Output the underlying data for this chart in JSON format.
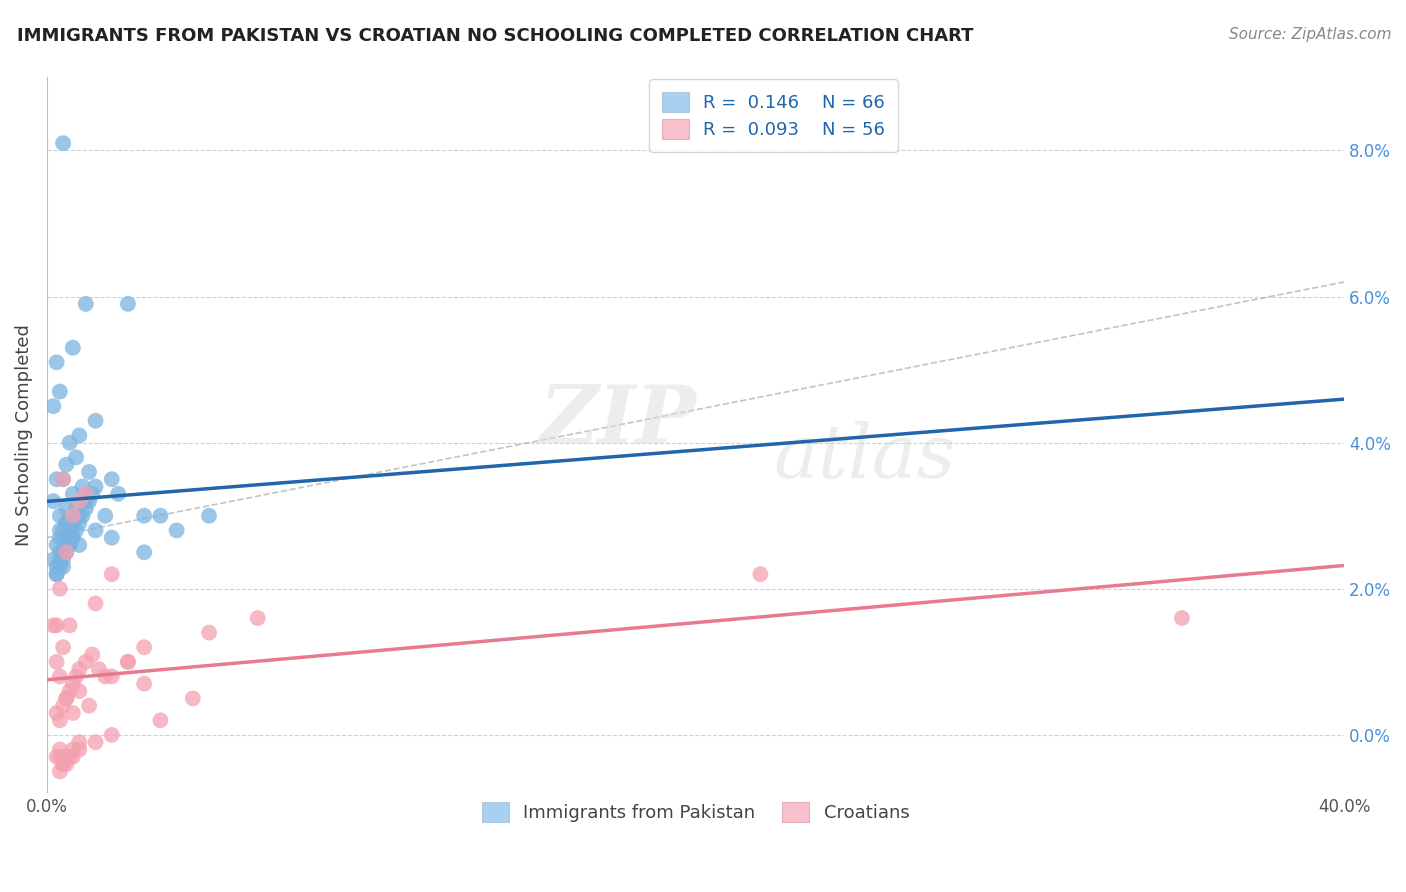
{
  "title": "IMMIGRANTS FROM PAKISTAN VS CROATIAN NO SCHOOLING COMPLETED CORRELATION CHART",
  "source": "Source: ZipAtlas.com",
  "ylabel": "No Schooling Completed",
  "yticks": [
    "0.0%",
    "2.0%",
    "4.0%",
    "6.0%",
    "8.0%"
  ],
  "ytick_vals": [
    0.0,
    2.0,
    4.0,
    6.0,
    8.0
  ],
  "xlim": [
    0.0,
    40.0
  ],
  "ylim": [
    -0.8,
    9.0
  ],
  "legend1_label": "Immigrants from Pakistan",
  "legend2_label": "Croatians",
  "R1": 0.146,
  "N1": 66,
  "R2": 0.093,
  "N2": 56,
  "color_blue": "#7ab3e0",
  "color_pink": "#f4a0b0",
  "color_blue_line": "#2166ac",
  "color_pink_line": "#e87a90",
  "color_legend_blue": "#a8d0f0",
  "color_legend_pink": "#f8c0cc",
  "blue_points_x": [
    0.5,
    1.2,
    0.3,
    0.8,
    2.5,
    0.2,
    0.4,
    0.6,
    1.0,
    1.5,
    0.7,
    0.3,
    0.5,
    0.2,
    0.4,
    0.6,
    0.8,
    1.1,
    1.3,
    0.9,
    2.0,
    3.0,
    0.4,
    0.3,
    0.6,
    0.8,
    1.0,
    0.5,
    0.7,
    0.2,
    0.3,
    0.5,
    0.4,
    0.6,
    0.9,
    1.2,
    1.8,
    2.2,
    3.5,
    0.4,
    0.5,
    0.3,
    0.7,
    1.0,
    0.6,
    0.8,
    0.4,
    0.5,
    1.5,
    2.0,
    3.0,
    4.0,
    5.0,
    0.3,
    0.4,
    0.5,
    0.6,
    0.7,
    0.8,
    0.9,
    1.0,
    1.1,
    1.2,
    1.3,
    1.4,
    1.5
  ],
  "blue_points_y": [
    8.1,
    5.9,
    5.1,
    5.3,
    5.9,
    4.5,
    4.7,
    3.7,
    4.1,
    4.3,
    4.0,
    3.5,
    3.5,
    3.2,
    3.0,
    3.1,
    3.3,
    3.4,
    3.6,
    3.8,
    3.5,
    3.0,
    2.8,
    2.6,
    2.9,
    2.7,
    3.0,
    2.5,
    2.6,
    2.4,
    2.3,
    2.8,
    2.5,
    2.9,
    3.1,
    3.2,
    3.0,
    3.3,
    3.0,
    2.7,
    2.5,
    2.2,
    2.8,
    2.6,
    2.7,
    2.9,
    2.4,
    2.3,
    2.8,
    2.7,
    2.5,
    2.8,
    3.0,
    2.2,
    2.3,
    2.4,
    2.5,
    2.6,
    2.7,
    2.8,
    2.9,
    3.0,
    3.1,
    3.2,
    3.3,
    3.4
  ],
  "pink_points_x": [
    0.3,
    0.5,
    0.8,
    1.0,
    1.5,
    0.2,
    0.4,
    0.6,
    1.2,
    2.0,
    0.3,
    0.5,
    0.7,
    0.4,
    0.6,
    0.8,
    1.0,
    1.3,
    1.8,
    2.5,
    3.0,
    4.5,
    0.3,
    0.4,
    0.5,
    0.6,
    0.7,
    0.8,
    0.9,
    1.0,
    1.2,
    1.4,
    1.6,
    2.0,
    2.5,
    3.0,
    5.0,
    6.5,
    0.4,
    0.3,
    0.5,
    0.6,
    0.8,
    1.0,
    0.7,
    0.5,
    0.4,
    0.6,
    0.8,
    1.0,
    1.5,
    2.0,
    3.5,
    22.0,
    35.0,
    0.4
  ],
  "pink_points_y": [
    1.5,
    3.5,
    3.0,
    3.2,
    1.8,
    1.5,
    2.0,
    2.5,
    3.3,
    2.2,
    1.0,
    1.2,
    1.5,
    0.8,
    0.5,
    0.3,
    0.6,
    0.4,
    0.8,
    1.0,
    1.2,
    0.5,
    0.3,
    0.2,
    0.4,
    0.5,
    0.6,
    0.7,
    0.8,
    0.9,
    1.0,
    1.1,
    0.9,
    0.8,
    1.0,
    0.7,
    1.4,
    1.6,
    -0.2,
    -0.3,
    -0.4,
    -0.3,
    -0.2,
    -0.1,
    -0.3,
    -0.4,
    -0.5,
    -0.4,
    -0.3,
    -0.2,
    -0.1,
    0.0,
    0.2,
    2.2,
    1.6,
    -0.3
  ]
}
